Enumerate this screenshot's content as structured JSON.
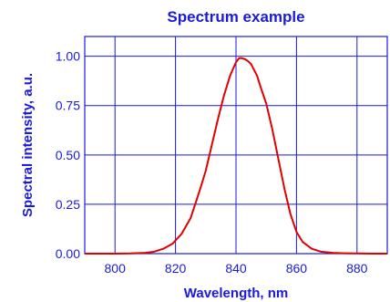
{
  "chart_data": {
    "type": "line",
    "title": "Spectrum example",
    "xlabel": "Wavelength, nm",
    "ylabel": "Spectral intensity, a.u.",
    "xlim": [
      790,
      890
    ],
    "ylim": [
      0,
      1.1
    ],
    "xticks": [
      800,
      820,
      840,
      860,
      880
    ],
    "yticks": [
      0.0,
      0.25,
      0.5,
      0.75,
      1.0
    ],
    "xtick_labels": [
      "800",
      "820",
      "840",
      "860",
      "880"
    ],
    "ytick_labels": [
      "0.00",
      "0.25",
      "0.50",
      "0.75",
      "1.00"
    ],
    "grid": true,
    "colors": {
      "text": "#1a1adf",
      "axes": "#1a1adf",
      "grid": "#1a1adf",
      "line": "#e00000"
    },
    "series": [
      {
        "x": [
          790,
          800,
          805,
          810,
          813,
          816,
          819,
          822,
          825,
          828,
          830,
          832,
          834,
          836,
          838,
          840,
          841,
          842,
          843,
          844,
          845,
          846,
          847,
          848,
          850,
          852,
          854,
          856,
          858,
          860,
          862,
          865,
          868,
          872,
          876,
          880,
          885,
          890
        ],
        "y": [
          0.0,
          0.0,
          0.001,
          0.004,
          0.01,
          0.025,
          0.05,
          0.1,
          0.18,
          0.32,
          0.42,
          0.55,
          0.68,
          0.8,
          0.9,
          0.97,
          0.99,
          0.99,
          0.985,
          0.975,
          0.96,
          0.93,
          0.9,
          0.85,
          0.76,
          0.63,
          0.48,
          0.33,
          0.2,
          0.11,
          0.06,
          0.025,
          0.01,
          0.004,
          0.002,
          0.001,
          0.0,
          0.0
        ]
      }
    ]
  }
}
